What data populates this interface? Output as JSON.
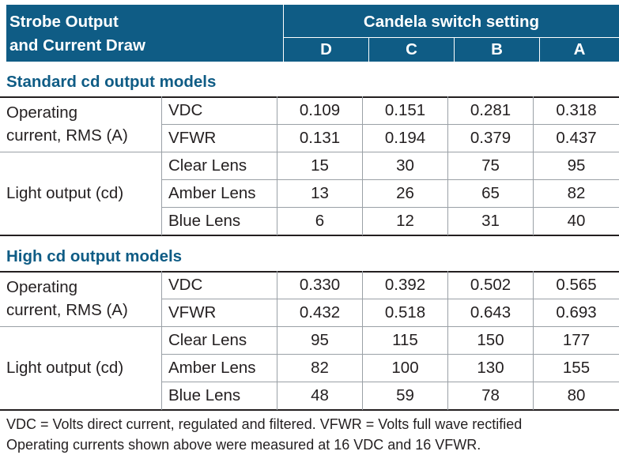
{
  "header": {
    "title": "Strobe Output\nand Current Draw",
    "group_label": "Candela switch setting",
    "columns": [
      "D",
      "C",
      "B",
      "A"
    ]
  },
  "sections": [
    {
      "title": "Standard cd output models",
      "groups": [
        {
          "label": "Operating\ncurrent, RMS (A)",
          "rows": [
            {
              "name": "VDC",
              "values": [
                "0.109",
                "0.151",
                "0.281",
                "0.318"
              ]
            },
            {
              "name": "VFWR",
              "values": [
                "0.131",
                "0.194",
                "0.379",
                "0.437"
              ]
            }
          ]
        },
        {
          "label": "Light output (cd)",
          "rows": [
            {
              "name": "Clear Lens",
              "values": [
                "15",
                "30",
                "75",
                "95"
              ]
            },
            {
              "name": "Amber Lens",
              "values": [
                "13",
                "26",
                "65",
                "82"
              ]
            },
            {
              "name": "Blue Lens",
              "values": [
                "6",
                "12",
                "31",
                "40"
              ]
            }
          ]
        }
      ]
    },
    {
      "title": "High cd output models",
      "groups": [
        {
          "label": "Operating\ncurrent, RMS (A)",
          "rows": [
            {
              "name": "VDC",
              "values": [
                "0.330",
                "0.392",
                "0.502",
                "0.565"
              ]
            },
            {
              "name": "VFWR",
              "values": [
                "0.432",
                "0.518",
                "0.643",
                "0.693"
              ]
            }
          ]
        },
        {
          "label": "Light output (cd)",
          "rows": [
            {
              "name": "Clear Lens",
              "values": [
                "95",
                "115",
                "150",
                "177"
              ]
            },
            {
              "name": "Amber Lens",
              "values": [
                "82",
                "100",
                "130",
                "155"
              ]
            },
            {
              "name": "Blue Lens",
              "values": [
                "48",
                "59",
                "78",
                "80"
              ]
            }
          ]
        }
      ]
    }
  ],
  "footnotes": [
    "VDC = Volts direct current, regulated and filtered. VFWR = Volts full wave rectified",
    "Operating currents shown above were measured at 16 VDC and 16 VFWR."
  ],
  "colors": {
    "header_bg": "#0f5c85",
    "section_title": "#0f5c85",
    "text": "#231f20",
    "rule": "#9aa0a6"
  }
}
